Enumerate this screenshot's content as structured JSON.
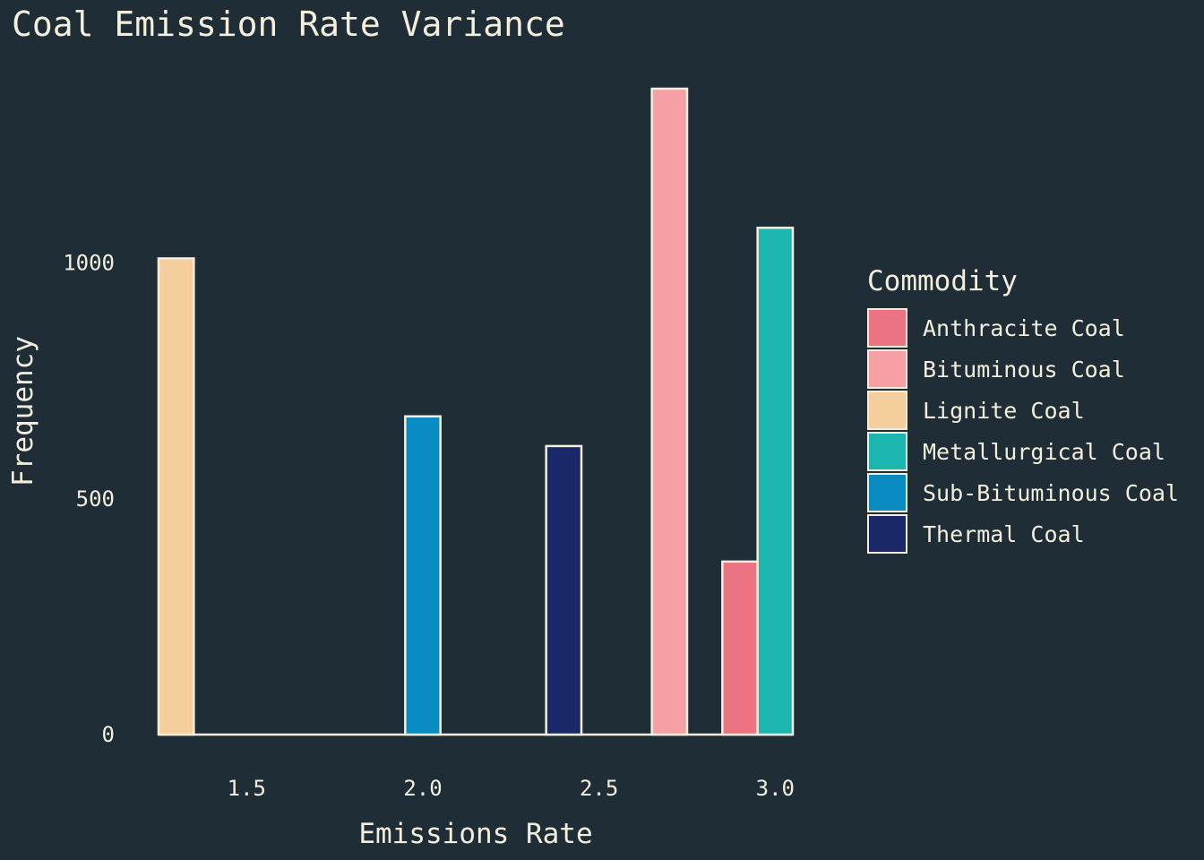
{
  "chart_data": {
    "type": "bar",
    "title": "Coal Emission Rate Variance",
    "xlabel": "Emissions Rate",
    "ylabel": "Frequency",
    "x_ticks": [
      "1.5",
      "2.0",
      "2.5",
      "3.0"
    ],
    "x_tick_values": [
      1.5,
      2.0,
      2.5,
      3.0
    ],
    "y_ticks": [
      "0",
      "500",
      "1000"
    ],
    "y_tick_values": [
      0,
      500,
      1000
    ],
    "xlim": [
      1.25,
      3.05
    ],
    "ylim": [
      0,
      1370
    ],
    "bin_width": 0.1,
    "grid": false,
    "legend": {
      "title": "Commodity",
      "placement": "right",
      "entries": [
        "Anthracite Coal",
        "Bituminous Coal",
        "Lignite Coal",
        "Metallurgical Coal",
        "Sub-Bituminous Coal",
        "Thermal Coal"
      ]
    },
    "series": [
      {
        "name": "Anthracite Coal",
        "color": "#eb7382",
        "x_start": [
          2.85
        ],
        "values": [
          367
        ]
      },
      {
        "name": "Bituminous Coal",
        "color": "#f4a0a4",
        "x_start": [
          2.65
        ],
        "values": [
          1370
        ]
      },
      {
        "name": "Lignite Coal",
        "color": "#f6cd9c",
        "x_start": [
          1.25
        ],
        "values": [
          1010
        ]
      },
      {
        "name": "Metallurgical Coal",
        "color": "#1cb5b0",
        "x_start": [
          2.95
        ],
        "values": [
          1075
        ]
      },
      {
        "name": "Sub-Bituminous Coal",
        "color": "#0a8bc1",
        "x_start": [
          1.95
        ],
        "values": [
          675
        ]
      },
      {
        "name": "Thermal Coal",
        "color": "#182868",
        "x_start": [
          2.35
        ],
        "values": [
          612
        ]
      }
    ]
  }
}
